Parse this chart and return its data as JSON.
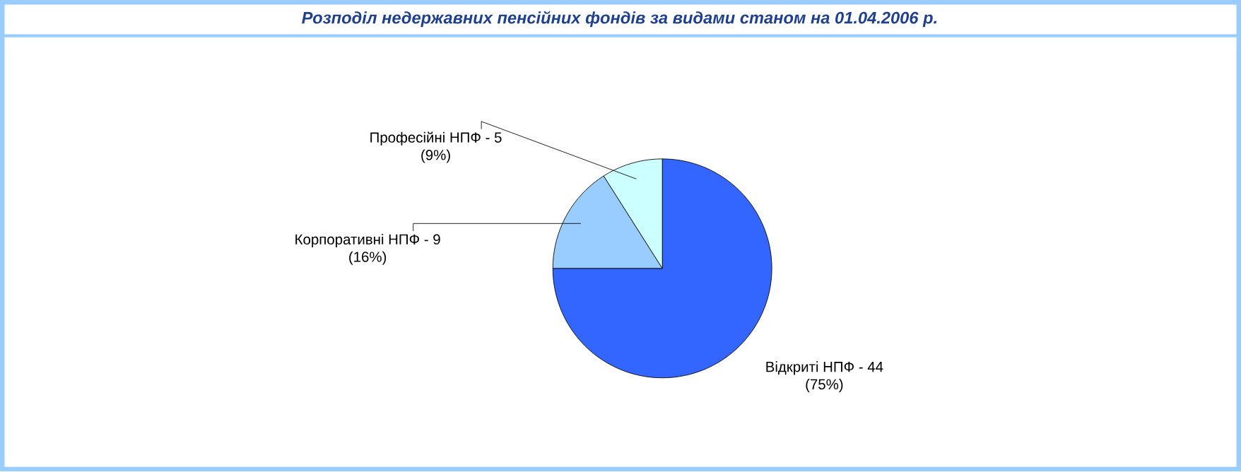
{
  "chart_data": {
    "type": "pie",
    "title": "Розподіл недержавних пенсійних фондів за видами станом на 01.04.2006 р.",
    "categories": [
      "Відкриті НПФ - 44",
      "Корпоративні НПФ  -  9",
      "Професійні НПФ - 5"
    ],
    "values": [
      75,
      16,
      9
    ],
    "value_labels": [
      "(75%)",
      "(16%)",
      "(9%)"
    ],
    "colors": [
      "#3366ff",
      "#99ccff",
      "#ccffff"
    ]
  }
}
